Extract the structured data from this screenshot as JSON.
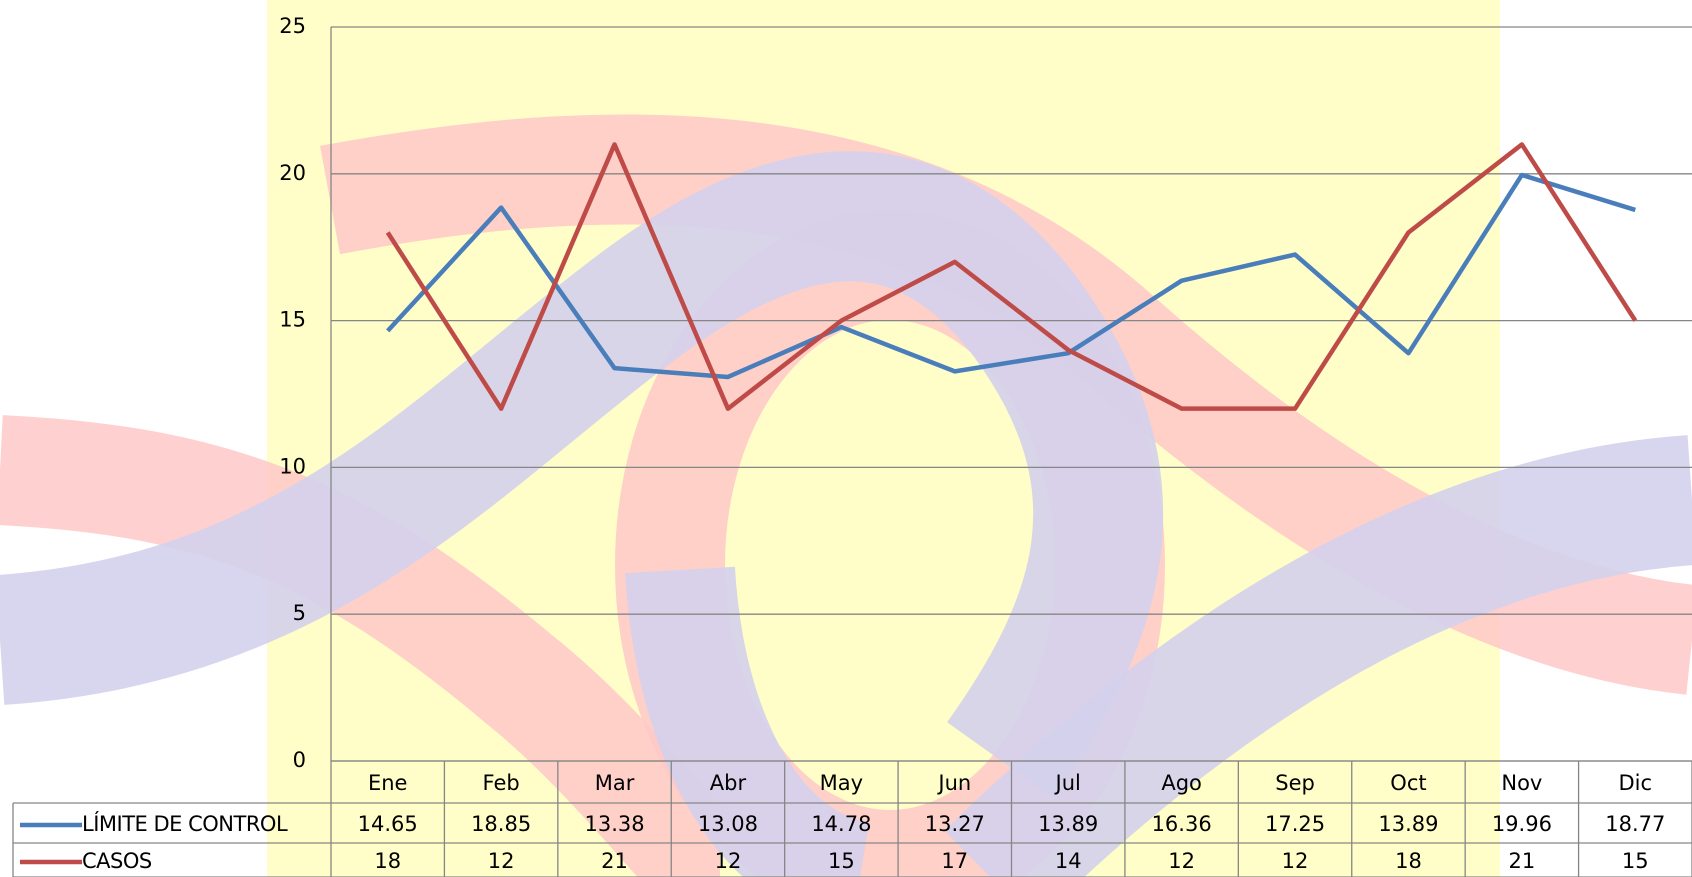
{
  "chart_data": {
    "type": "line",
    "categories": [
      "Ene",
      "Feb",
      "Mar",
      "Abr",
      "May",
      "Jun",
      "Jul",
      "Ago",
      "Sep",
      "Oct",
      "Nov",
      "Dic"
    ],
    "series": [
      {
        "name": "LÍMITE DE CONTROL",
        "color": "#4a7ebb",
        "values": [
          14.65,
          18.85,
          13.38,
          13.08,
          14.78,
          13.27,
          13.89,
          16.36,
          17.25,
          13.89,
          19.96,
          18.77
        ]
      },
      {
        "name": "CASOS",
        "color": "#be4b48",
        "values": [
          18,
          12,
          21,
          12,
          15,
          17,
          14,
          12,
          12,
          18,
          21,
          15
        ]
      }
    ],
    "ylim": [
      0,
      25
    ],
    "yticks": [
      0,
      5,
      10,
      15,
      20,
      25
    ],
    "grid": true,
    "data_table": true
  }
}
